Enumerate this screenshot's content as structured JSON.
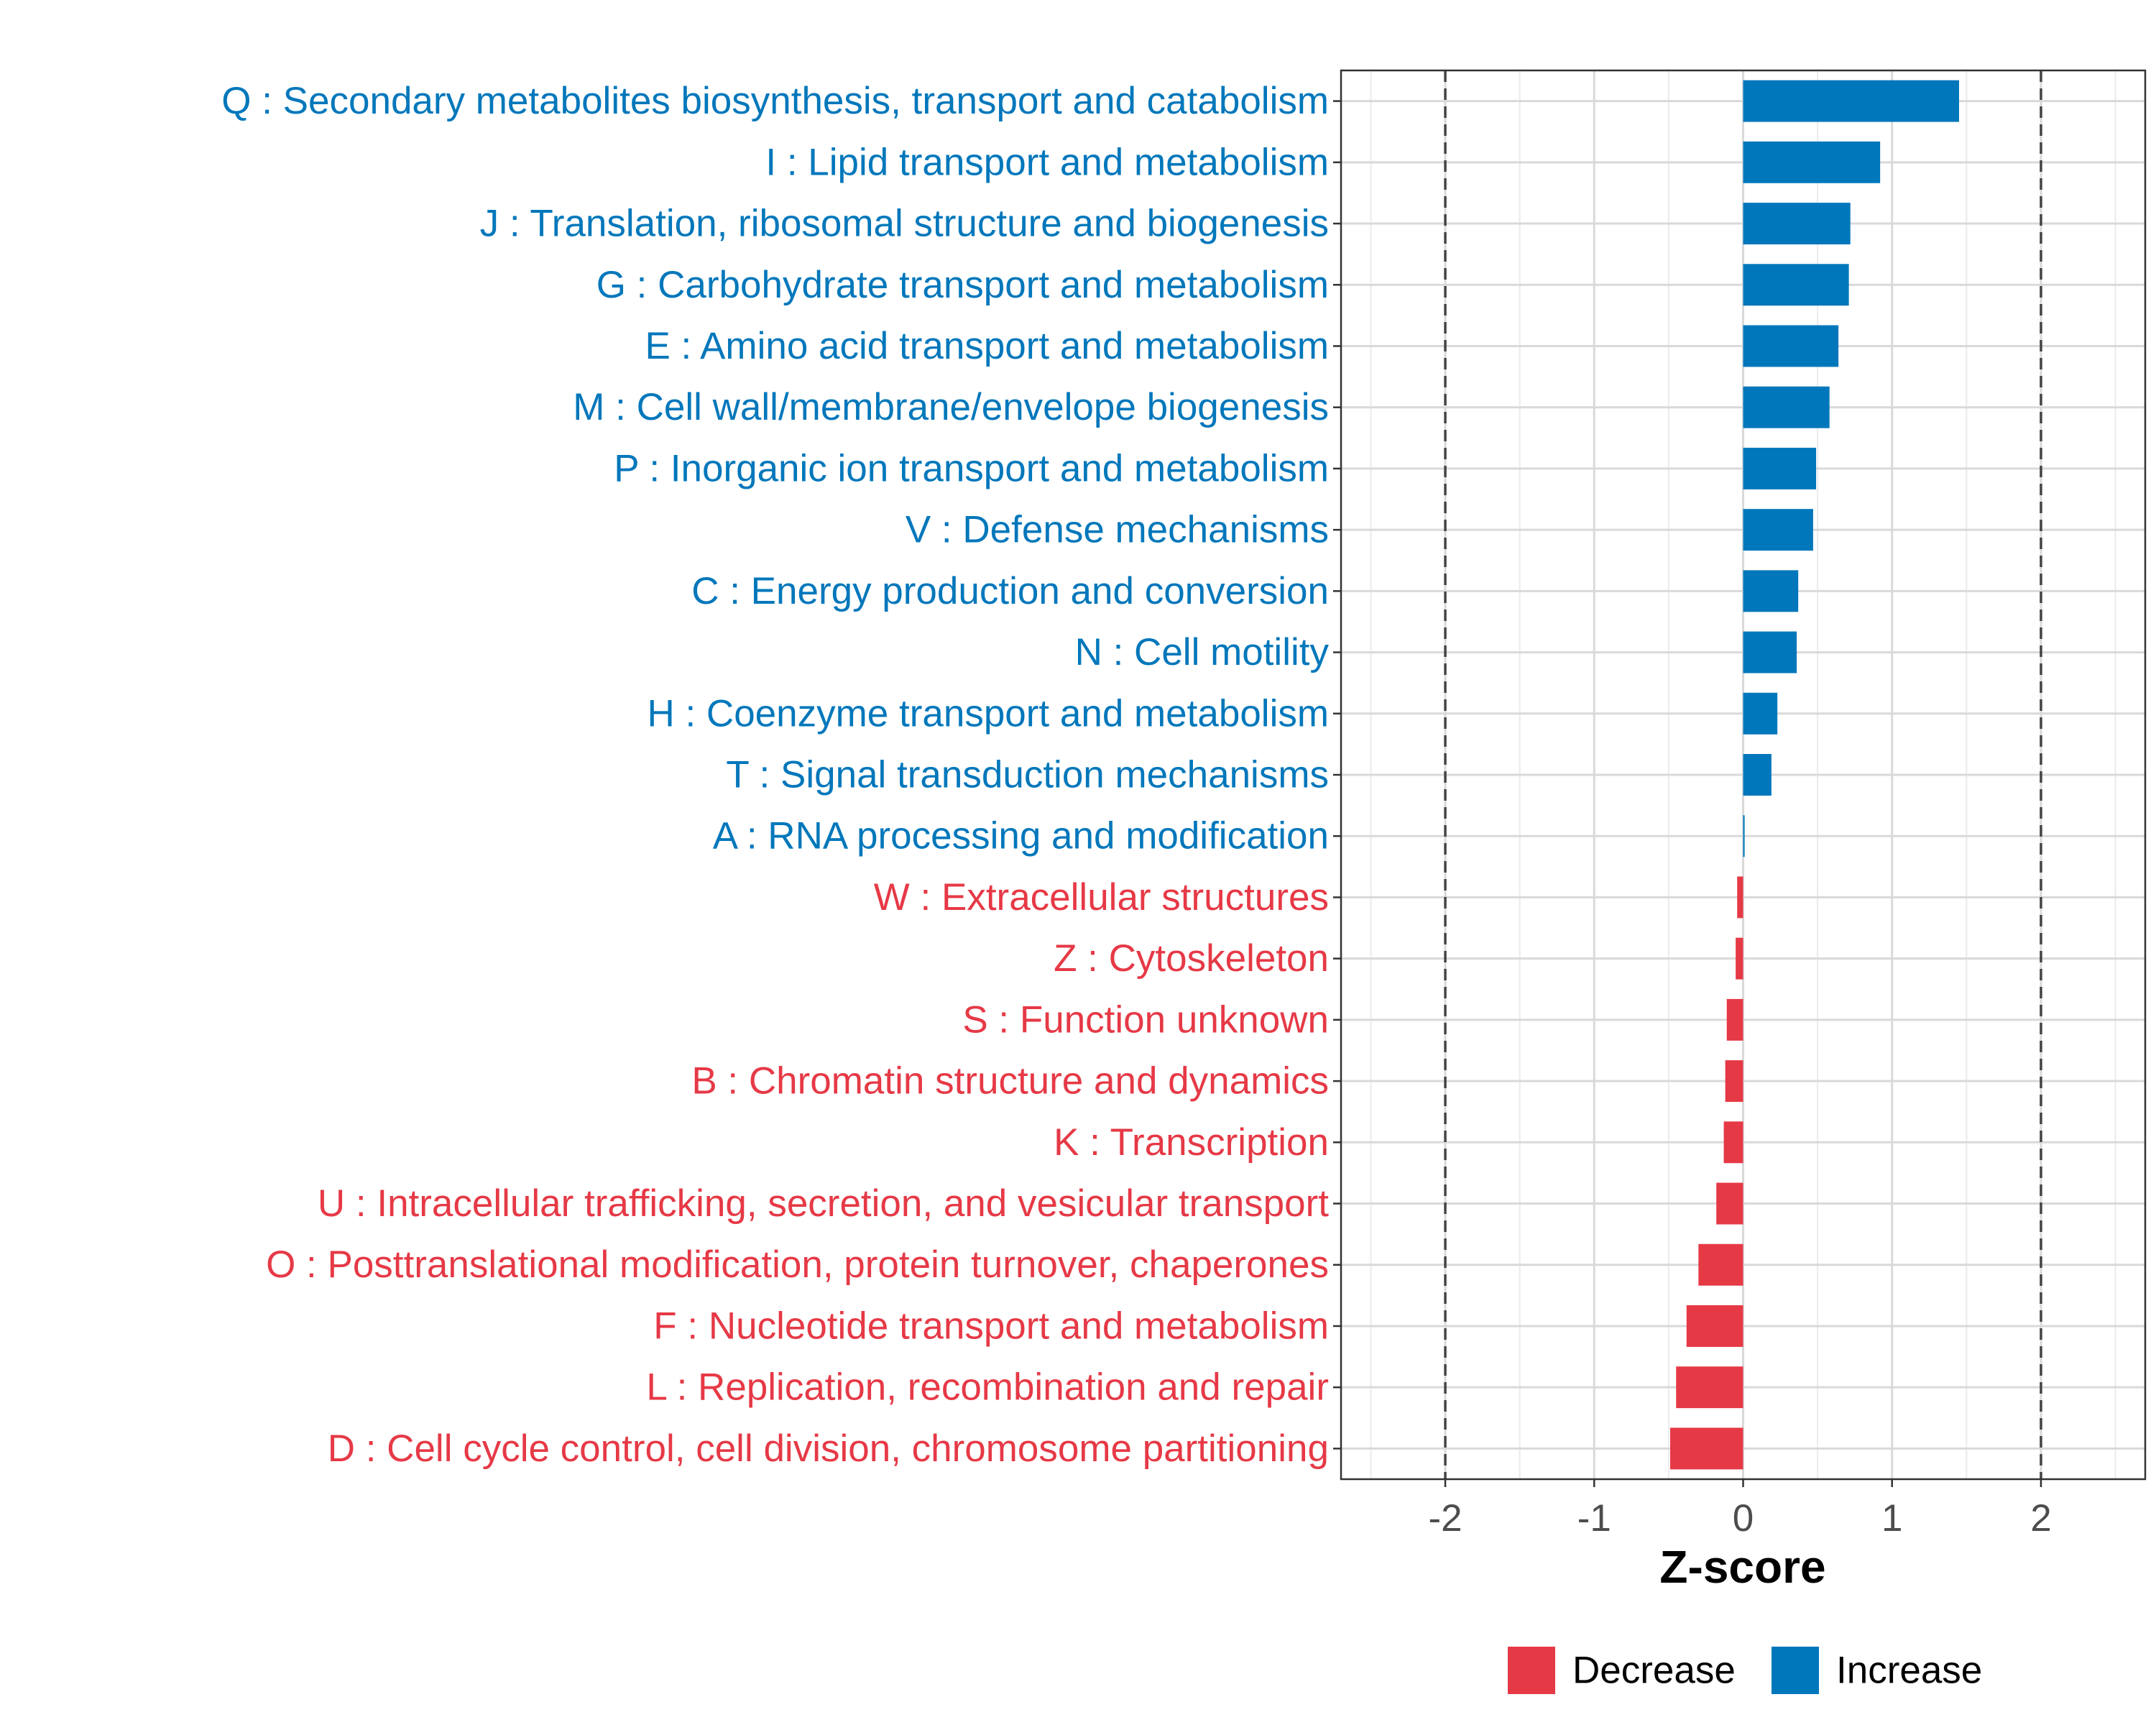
{
  "chart_data": {
    "type": "bar",
    "orientation": "horizontal",
    "title": "",
    "xlabel": "Z-score",
    "ylabel": "",
    "xlim": [
      -2.7,
      2.7
    ],
    "xticks": [
      -2,
      -1,
      0,
      1,
      2
    ],
    "xtick_labels": [
      "-2",
      "-1",
      "0",
      "1",
      "2"
    ],
    "reference_lines": [
      -2,
      2
    ],
    "grid": true,
    "legend_position": "bottom",
    "colors": {
      "Increase": "#0077BB",
      "Decrease": "#E63946"
    },
    "legend": [
      {
        "label": "Decrease",
        "key": "Decrease"
      },
      {
        "label": "Increase",
        "key": "Increase"
      }
    ],
    "categories": [
      {
        "label": "Q : Secondary metabolites biosynthesis, transport and catabolism",
        "value": 1.45,
        "group": "Increase"
      },
      {
        "label": "I : Lipid transport and metabolism",
        "value": 0.92,
        "group": "Increase"
      },
      {
        "label": "J : Translation, ribosomal structure and biogenesis",
        "value": 0.72,
        "group": "Increase"
      },
      {
        "label": "G : Carbohydrate transport and metabolism",
        "value": 0.71,
        "group": "Increase"
      },
      {
        "label": "E : Amino acid transport and metabolism",
        "value": 0.64,
        "group": "Increase"
      },
      {
        "label": "M : Cell wall/membrane/envelope biogenesis",
        "value": 0.58,
        "group": "Increase"
      },
      {
        "label": "P : Inorganic ion transport and metabolism",
        "value": 0.49,
        "group": "Increase"
      },
      {
        "label": "V : Defense mechanisms",
        "value": 0.47,
        "group": "Increase"
      },
      {
        "label": "C : Energy production and conversion",
        "value": 0.37,
        "group": "Increase"
      },
      {
        "label": "N : Cell motility",
        "value": 0.36,
        "group": "Increase"
      },
      {
        "label": "H : Coenzyme transport and metabolism",
        "value": 0.23,
        "group": "Increase"
      },
      {
        "label": "T : Signal transduction mechanisms",
        "value": 0.19,
        "group": "Increase"
      },
      {
        "label": "A : RNA processing and modification",
        "value": 0.01,
        "group": "Increase"
      },
      {
        "label": "W : Extracellular structures",
        "value": -0.04,
        "group": "Decrease"
      },
      {
        "label": "Z : Cytoskeleton",
        "value": -0.05,
        "group": "Decrease"
      },
      {
        "label": "S : Function unknown",
        "value": -0.11,
        "group": "Decrease"
      },
      {
        "label": "B : Chromatin structure and dynamics",
        "value": -0.12,
        "group": "Decrease"
      },
      {
        "label": "K : Transcription",
        "value": -0.13,
        "group": "Decrease"
      },
      {
        "label": "U : Intracellular trafficking, secretion, and vesicular transport",
        "value": -0.18,
        "group": "Decrease"
      },
      {
        "label": "O : Posttranslational modification, protein turnover, chaperones",
        "value": -0.3,
        "group": "Decrease"
      },
      {
        "label": "F : Nucleotide transport and metabolism",
        "value": -0.38,
        "group": "Decrease"
      },
      {
        "label": "L : Replication, recombination and repair",
        "value": -0.45,
        "group": "Decrease"
      },
      {
        "label": "D : Cell cycle control, cell division, chromosome partitioning",
        "value": -0.49,
        "group": "Decrease"
      }
    ]
  }
}
